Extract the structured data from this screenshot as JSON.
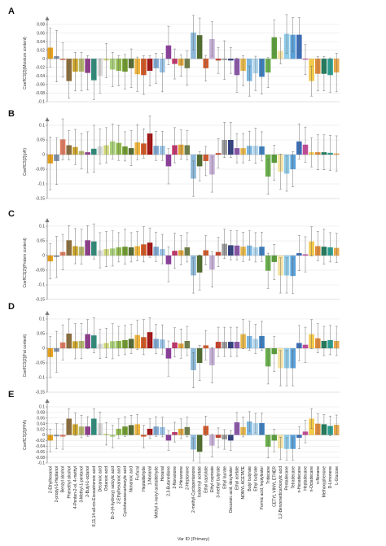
{
  "chart_data": {
    "type": "bar",
    "categories": [
      "2-Ethylhexanol",
      "2-propyl-1-Heptanol",
      "Benzyl alcohol",
      "Phenethyl alcohol",
      "4-Penten-2-ol, 4-methyl",
      "3-Methyl-1-pentanol",
      "2-Butyl-1-octanol",
      "8,11,14-all-cis-Eicosatrienoic acid",
      "Decanoic acid",
      "Octanoic acid",
      "Di-3-(4-hydroxy) salicylic acid",
      "2-Ethylhexanoic acid",
      "Cyclohexanecarboxylic acid",
      "Nonanoic acid",
      "Furfural",
      "Heptaldehyde",
      "1-Nonanal",
      "Methyl n-nonyl acetaldehyde",
      "Hexanal",
      "2,3-Butanedione",
      "2-Nonanone",
      "2-Hexanone",
      "2-Heptanone",
      "2-methyl-Cyclopentanone",
      "Isobornyl acetate",
      "Ethyl caprylate",
      "Ethyl caproate",
      "3-methyl butyrate",
      "Ethyl laurate",
      "Decanoic acid, decylester",
      "Ethyl acetate",
      "NONYL ACETATE",
      "Butyl butyrate",
      "Ethyl butyrate",
      "Formic acid, heptylester",
      "Tridecane",
      "CETYL VINYL ETHER",
      "1,2-Benzenedicarboxylic acid",
      "Pentadecane",
      "Tetradecane",
      "n-Hexadecane",
      "Heptadecane",
      "n-Octadecane",
      "n-Nonane",
      "Methoxyphenone",
      "D-Limonene",
      "L-Glucose"
    ],
    "xlabel": "Var ID (Primary)",
    "bar_colors": [
      "#e8a21c",
      "#7f8fa6",
      "#e07a5f",
      "#8a6d3b",
      "#c9a227",
      "#b5b86a",
      "#8e3a8c",
      "#2e8b7a",
      "#d9d9d9",
      "#cfd87a",
      "#a9cf7a",
      "#8fb84a",
      "#6f9a2d",
      "#556b2f",
      "#f0b53c",
      "#d1561f",
      "#a31212",
      "#7fa8d1",
      "#9bc3e6",
      "#8b3d9c",
      "#c2336b",
      "#e0a43a",
      "#6f7f4a",
      "#8cb8d9",
      "#4f6b2c",
      "#d15a2c",
      "#c6b0d6",
      "#c8402a",
      "#9a9a9a",
      "#2f3f7f",
      "#8a56a8",
      "#e8b84a",
      "#7ab6e0",
      "#b2d6ee",
      "#3a7dbe",
      "#6ab04c",
      "#5a9e3a",
      "#f3e1a0",
      "#8ecbe8",
      "#5aa0d8",
      "#3b6db5",
      "#c44a9a",
      "#f2c94c",
      "#e08a3a",
      "#1f7a5a",
      "#2a9d8f",
      "#e9a84a"
    ],
    "series": [
      {
        "ylabel": "CoeffCS[2](Moisture content)",
        "ylim": [
          -0.1,
          0.08
        ],
        "yticks": [
          -0.1,
          -0.08,
          -0.06,
          -0.04,
          -0.02,
          0,
          0.02,
          0.04,
          0.06,
          0.08
        ],
        "values": [
          0.026,
          0.006,
          -0.003,
          -0.052,
          -0.03,
          -0.03,
          -0.033,
          -0.05,
          -0.04,
          -0.004,
          -0.025,
          -0.028,
          -0.03,
          -0.022,
          -0.036,
          -0.038,
          -0.028,
          -0.022,
          -0.032,
          0.031,
          -0.012,
          -0.016,
          -0.022,
          0.061,
          0.055,
          -0.022,
          0.046,
          -0.004,
          -0.003,
          -0.004,
          -0.038,
          -0.028,
          -0.052,
          -0.034,
          -0.042,
          -0.032,
          0.05,
          0.018,
          0.058,
          0.056,
          0.056,
          -0.002,
          -0.052,
          -0.035,
          -0.035,
          -0.038,
          -0.032
        ],
        "errors": [
          0.045,
          0.06,
          0.04,
          0.04,
          0.045,
          0.045,
          0.04,
          0.045,
          0.04,
          0.04,
          0.04,
          0.035,
          0.04,
          0.045,
          0.04,
          0.045,
          0.035,
          0.035,
          0.045,
          0.045,
          0.035,
          0.025,
          0.04,
          0.04,
          0.04,
          0.03,
          0.04,
          0.03,
          0.045,
          0.03,
          0.04,
          0.035,
          0.035,
          0.04,
          0.04,
          0.035,
          0.04,
          0.03,
          0.045,
          0.04,
          0.04,
          0.035,
          0.035,
          0.04,
          0.04,
          0.04,
          0.045
        ]
      },
      {
        "ylabel": "CoeffCS[2](pH)",
        "ylim": [
          -0.15,
          0.1
        ],
        "yticks": [
          -0.15,
          -0.1,
          -0.05,
          0,
          0.05,
          0.1
        ],
        "values": [
          -0.03,
          -0.022,
          0.052,
          0.032,
          0.026,
          0.012,
          0.008,
          0.02,
          0.028,
          0.032,
          0.045,
          0.04,
          0.028,
          0.022,
          0.042,
          0.038,
          0.072,
          0.03,
          0.03,
          -0.04,
          0.032,
          0.034,
          0.032,
          -0.082,
          -0.04,
          -0.022,
          -0.068,
          0.005,
          0.05,
          0.05,
          0.022,
          0.022,
          0.03,
          0.03,
          0.028,
          -0.075,
          -0.028,
          -0.058,
          -0.065,
          -0.05,
          0.045,
          0.034,
          0.008,
          0.008,
          0.008,
          0.006,
          0.004
        ],
        "errors": [
          0.09,
          0.08,
          0.07,
          0.05,
          0.06,
          0.06,
          0.07,
          0.08,
          0.06,
          0.06,
          0.06,
          0.06,
          0.05,
          0.06,
          0.06,
          0.05,
          0.06,
          0.05,
          0.05,
          0.06,
          0.06,
          0.05,
          0.05,
          0.06,
          0.05,
          0.05,
          0.06,
          0.05,
          0.06,
          0.06,
          0.05,
          0.05,
          0.05,
          0.06,
          0.05,
          0.06,
          0.06,
          0.06,
          0.06,
          0.06,
          0.06,
          0.06,
          0.05,
          0.06,
          0.06,
          0.06,
          0.06
        ]
      },
      {
        "ylabel": "CoeffCS[2](Protein content)",
        "ylim": [
          -0.15,
          0.1
        ],
        "yticks": [
          -0.15,
          -0.1,
          -0.05,
          0,
          0.05,
          0.1
        ],
        "values": [
          -0.02,
          -0.005,
          0.012,
          0.052,
          0.032,
          0.03,
          0.052,
          0.048,
          0.018,
          0.022,
          0.024,
          0.028,
          0.03,
          0.028,
          0.032,
          0.038,
          0.044,
          0.03,
          0.022,
          -0.03,
          0.016,
          0.018,
          0.028,
          -0.068,
          -0.058,
          0.018,
          -0.048,
          0.012,
          0.04,
          0.035,
          0.034,
          0.03,
          0.034,
          0.028,
          0.03,
          -0.052,
          -0.022,
          -0.068,
          -0.068,
          -0.07,
          0.008,
          0.004,
          0.048,
          0.032,
          0.03,
          0.028,
          0.026
        ],
        "errors": [
          0.06,
          0.07,
          0.06,
          0.05,
          0.06,
          0.06,
          0.05,
          0.06,
          0.06,
          0.06,
          0.06,
          0.05,
          0.06,
          0.05,
          0.05,
          0.06,
          0.05,
          0.05,
          0.05,
          0.06,
          0.06,
          0.05,
          0.05,
          0.06,
          0.06,
          0.05,
          0.06,
          0.05,
          0.05,
          0.05,
          0.05,
          0.05,
          0.05,
          0.05,
          0.05,
          0.06,
          0.06,
          0.06,
          0.06,
          0.06,
          0.06,
          0.06,
          0.05,
          0.05,
          0.06,
          0.05,
          0.05
        ]
      },
      {
        "ylabel": "CoeffCS[2](Fat content)",
        "ylim": [
          -0.15,
          0.1
        ],
        "yticks": [
          -0.15,
          -0.1,
          -0.05,
          0,
          0.05,
          0.1
        ],
        "values": [
          -0.03,
          -0.012,
          0.02,
          0.05,
          0.024,
          0.025,
          0.048,
          0.044,
          0.015,
          0.018,
          0.024,
          0.025,
          0.028,
          0.032,
          0.045,
          0.038,
          0.055,
          0.032,
          0.03,
          -0.035,
          0.02,
          0.016,
          0.025,
          -0.075,
          -0.05,
          0.01,
          -0.058,
          0.022,
          0.022,
          0.022,
          0.022,
          0.048,
          0.042,
          0.032,
          0.042,
          -0.062,
          -0.02,
          -0.068,
          -0.068,
          -0.068,
          0.018,
          0.012,
          0.048,
          0.034,
          0.025,
          0.028,
          0.025
        ],
        "errors": [
          0.07,
          0.07,
          0.06,
          0.05,
          0.06,
          0.06,
          0.05,
          0.06,
          0.05,
          0.05,
          0.06,
          0.05,
          0.05,
          0.05,
          0.05,
          0.06,
          0.05,
          0.05,
          0.05,
          0.06,
          0.05,
          0.05,
          0.05,
          0.06,
          0.06,
          0.05,
          0.06,
          0.05,
          0.05,
          0.05,
          0.05,
          0.05,
          0.05,
          0.05,
          0.05,
          0.06,
          0.06,
          0.06,
          0.06,
          0.06,
          0.06,
          0.06,
          0.05,
          0.05,
          0.05,
          0.05,
          0.05
        ]
      },
      {
        "ylabel": "CoeffCS[2](FFA)",
        "ylim": [
          -0.1,
          0.1
        ],
        "yticks": [
          -0.1,
          -0.08,
          -0.06,
          -0.04,
          -0.02,
          0,
          0.02,
          0.04,
          0.06,
          0.08,
          0.1
        ],
        "values": [
          -0.02,
          -0.005,
          -0.006,
          0.058,
          0.038,
          0.03,
          0.03,
          0.058,
          0.042,
          0.004,
          -0.006,
          0.022,
          0.03,
          0.035,
          0.038,
          -0.006,
          0.022,
          0.03,
          0.028,
          -0.02,
          0.01,
          0.022,
          0.028,
          -0.052,
          -0.06,
          0.032,
          -0.038,
          -0.01,
          -0.016,
          -0.02,
          0.045,
          0.028,
          0.048,
          0.042,
          0.042,
          -0.042,
          -0.02,
          -0.048,
          -0.05,
          -0.05,
          -0.01,
          0.012,
          0.058,
          0.04,
          0.038,
          0.032,
          0.036
        ],
        "errors": [
          0.04,
          0.045,
          0.045,
          0.035,
          0.04,
          0.04,
          0.035,
          0.035,
          0.04,
          0.04,
          0.04,
          0.035,
          0.035,
          0.035,
          0.035,
          0.04,
          0.035,
          0.035,
          0.035,
          0.035,
          0.035,
          0.035,
          0.035,
          0.04,
          0.04,
          0.035,
          0.04,
          0.035,
          0.035,
          0.035,
          0.035,
          0.035,
          0.035,
          0.035,
          0.035,
          0.04,
          0.04,
          0.04,
          0.04,
          0.04,
          0.04,
          0.04,
          0.035,
          0.035,
          0.035,
          0.035,
          0.035
        ]
      }
    ],
    "panels": [
      "A",
      "B",
      "C",
      "D",
      "E"
    ],
    "grid": true,
    "legend": "none"
  }
}
